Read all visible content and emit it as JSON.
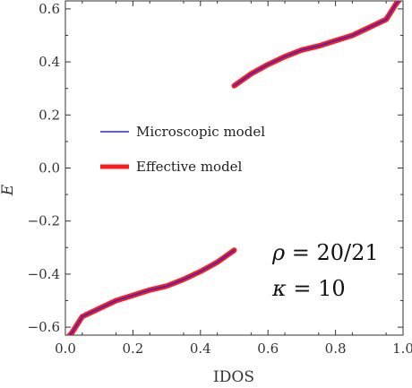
{
  "chart_data": {
    "type": "line",
    "xlabel": "IDOS",
    "ylabel": "E",
    "xlim": [
      0,
      1
    ],
    "ylim": [
      -0.63,
      0.63
    ],
    "xticks": [
      0.0,
      0.2,
      0.4,
      0.6,
      0.8,
      1.0
    ],
    "xtick_labels": [
      "0.0",
      "0.2",
      "0.4",
      "0.6",
      "0.8",
      "1.0"
    ],
    "yticks": [
      -0.6,
      -0.4,
      -0.2,
      0.0,
      0.2,
      0.4,
      0.6
    ],
    "ytick_labels": [
      "−0.6",
      "−0.4",
      "−0.2",
      "0.0",
      "0.2",
      "0.4",
      "0.6"
    ],
    "legend_position": "center-left",
    "grid": false,
    "series": [
      {
        "name": "Microscopic model",
        "color": "#2a2ad8",
        "segments": [
          [
            [
              0.0,
              -0.65
            ],
            [
              0.02,
              -0.62
            ],
            [
              0.05,
              -0.56
            ],
            [
              0.1,
              -0.53
            ],
            [
              0.15,
              -0.5
            ],
            [
              0.2,
              -0.48
            ],
            [
              0.25,
              -0.46
            ],
            [
              0.3,
              -0.445
            ],
            [
              0.35,
              -0.42
            ],
            [
              0.4,
              -0.39
            ],
            [
              0.45,
              -0.355
            ],
            [
              0.5,
              -0.31
            ]
          ],
          [
            [
              0.5,
              0.31
            ],
            [
              0.55,
              0.355
            ],
            [
              0.6,
              0.39
            ],
            [
              0.65,
              0.42
            ],
            [
              0.7,
              0.445
            ],
            [
              0.75,
              0.46
            ],
            [
              0.8,
              0.48
            ],
            [
              0.85,
              0.5
            ],
            [
              0.9,
              0.53
            ],
            [
              0.95,
              0.56
            ],
            [
              0.98,
              0.62
            ],
            [
              1.0,
              0.65
            ]
          ]
        ]
      },
      {
        "name": "Effective model",
        "color": "#ff1a1a",
        "segments": [
          [
            [
              0.0,
              -0.65
            ],
            [
              0.02,
              -0.62
            ],
            [
              0.05,
              -0.56
            ],
            [
              0.1,
              -0.53
            ],
            [
              0.15,
              -0.5
            ],
            [
              0.2,
              -0.48
            ],
            [
              0.25,
              -0.46
            ],
            [
              0.3,
              -0.445
            ],
            [
              0.35,
              -0.42
            ],
            [
              0.4,
              -0.39
            ],
            [
              0.45,
              -0.355
            ],
            [
              0.5,
              -0.31
            ]
          ],
          [
            [
              0.5,
              0.31
            ],
            [
              0.55,
              0.355
            ],
            [
              0.6,
              0.39
            ],
            [
              0.65,
              0.42
            ],
            [
              0.7,
              0.445
            ],
            [
              0.75,
              0.46
            ],
            [
              0.8,
              0.48
            ],
            [
              0.85,
              0.5
            ],
            [
              0.9,
              0.53
            ],
            [
              0.95,
              0.56
            ],
            [
              0.98,
              0.62
            ],
            [
              1.0,
              0.65
            ]
          ]
        ]
      }
    ],
    "annotations": {
      "rho_symbol": "ρ",
      "rho_value": " = 20/21",
      "kappa_symbol": "κ",
      "kappa_value": " = 10"
    }
  }
}
